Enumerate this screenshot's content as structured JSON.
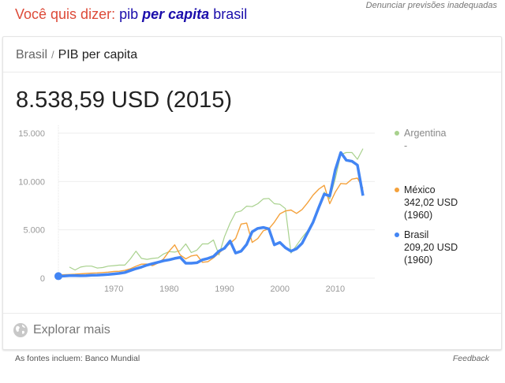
{
  "report_link": "Denunciar previsões inadequadas",
  "did_you_mean": {
    "label": "Você quis dizer:",
    "parts": [
      "pib",
      "per capita",
      "brasil"
    ]
  },
  "breadcrumb": {
    "country": "Brasil",
    "separator": "/",
    "indicator": "PIB per capita"
  },
  "headline_value": "8.538,59 USD (2015)",
  "legend": [
    {
      "name": "Argentina",
      "value": "-",
      "year": "",
      "color": "#a8d18d"
    },
    {
      "name": "México",
      "value": "342,02 USD",
      "year": "(1960)",
      "color": "#f4a13b"
    },
    {
      "name": "Brasil",
      "value": "209,20 USD",
      "year": "(1960)",
      "color": "#4285f4"
    }
  ],
  "explore_more": "Explorar mais",
  "footer": {
    "sources": "As fontes incluem: Banco Mundial",
    "feedback": "Feedback"
  },
  "chart_data": {
    "type": "line",
    "x_range": [
      1960,
      2015
    ],
    "ylim": [
      0,
      15000
    ],
    "yticks": [
      0,
      5000,
      10000,
      15000
    ],
    "ytick_labels": [
      "0",
      "5.000",
      "10.000",
      "15.000"
    ],
    "xticks": [
      1970,
      1980,
      1990,
      2000,
      2010
    ],
    "xtick_labels": [
      "1970",
      "1980",
      "1990",
      "2000",
      "2010"
    ],
    "grid": true,
    "legend_position": "right",
    "series": [
      {
        "name": "Argentina",
        "color": "#a8d18d",
        "start": 1962,
        "values": [
          1150,
          850,
          1150,
          1250,
          1250,
          1050,
          1100,
          1250,
          1300,
          1350,
          1350,
          2000,
          2800,
          2050,
          1950,
          2050,
          2100,
          2500,
          2750,
          2700,
          2850,
          3550,
          2650,
          2900,
          3550,
          3550,
          3950,
          2400,
          4300,
          5700,
          6800,
          6950,
          7450,
          7400,
          7700,
          8200,
          8250,
          7700,
          7650,
          7200,
          2600,
          3400,
          4200,
          4900,
          5800,
          7200,
          8900,
          8200,
          10300,
          12800,
          13000,
          13000,
          12300,
          13400
        ]
      },
      {
        "name": "México",
        "color": "#f4a13b",
        "start": 1960,
        "values": [
          342,
          360,
          380,
          410,
          460,
          490,
          520,
          550,
          590,
          630,
          690,
          720,
          810,
          980,
          1230,
          1450,
          1460,
          1300,
          1570,
          2000,
          2800,
          3450,
          2400,
          2000,
          2300,
          2400,
          1650,
          1700,
          2100,
          2600,
          3100,
          3600,
          4100,
          5600,
          5700,
          3700,
          4100,
          4900,
          5100,
          5800,
          6650,
          6950,
          7050,
          6700,
          7100,
          7800,
          8600,
          9200,
          9600,
          7700,
          8900,
          9800,
          9750,
          10250,
          10350,
          9300
        ]
      },
      {
        "name": "Brasil",
        "color": "#4285f4",
        "start": 1960,
        "values": [
          209,
          230,
          260,
          260,
          250,
          270,
          300,
          320,
          350,
          380,
          440,
          500,
          590,
          790,
          990,
          1150,
          1350,
          1500,
          1650,
          1800,
          1900,
          2050,
          2150,
          1550,
          1550,
          1600,
          1900,
          2050,
          2250,
          2800,
          3100,
          3850,
          2600,
          2800,
          3500,
          4800,
          5150,
          5250,
          5100,
          3450,
          3700,
          3150,
          2800,
          3050,
          3600,
          4700,
          5800,
          7300,
          8700,
          8500,
          11200,
          13000,
          12200,
          12100,
          11700,
          8539
        ]
      }
    ]
  }
}
